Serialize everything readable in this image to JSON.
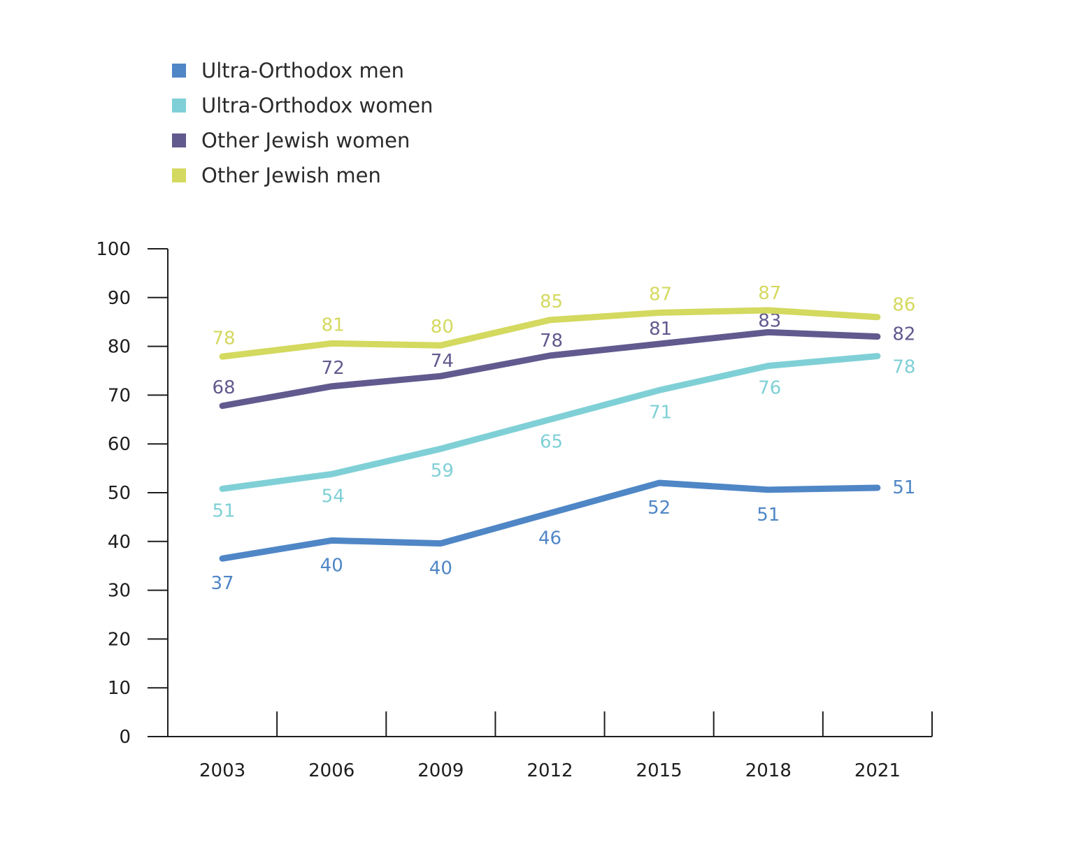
{
  "chart_data": {
    "type": "line",
    "title": "",
    "xlabel": "",
    "ylabel": "",
    "ylim": [
      0,
      100
    ],
    "yticks": [
      0,
      10,
      20,
      30,
      40,
      50,
      60,
      70,
      80,
      90,
      100
    ],
    "categories": [
      "2003",
      "2006",
      "2009",
      "2012",
      "2015",
      "2018",
      "2021"
    ],
    "legend_position": "top-left",
    "grid": false,
    "series": [
      {
        "name": "Ultra-Orthodox men",
        "color": "#4f86c6",
        "values": [
          36.5,
          40.2,
          39.6,
          45.8,
          52.0,
          50.6,
          51.0
        ],
        "labels": [
          "37",
          "40",
          "40",
          "46",
          "52",
          "51",
          "51"
        ]
      },
      {
        "name": "Ultra-Orthodox women",
        "color": "#7fd0d6",
        "values": [
          50.8,
          53.8,
          59.0,
          65.0,
          71.0,
          76.0,
          78.0
        ],
        "labels": [
          "51",
          "54",
          "59",
          "65",
          "71",
          "76",
          "78"
        ]
      },
      {
        "name": "Other Jewish women",
        "color": "#615a8e",
        "values": [
          67.8,
          71.8,
          73.9,
          78.1,
          80.5,
          82.9,
          82.0
        ],
        "labels": [
          "68",
          "72",
          "74",
          "78",
          "81",
          "83",
          "82"
        ]
      },
      {
        "name": "Other Jewish men",
        "color": "#d4d95f",
        "values": [
          77.9,
          80.6,
          80.2,
          85.4,
          86.9,
          87.4,
          86.0
        ],
        "labels": [
          "78",
          "81",
          "80",
          "85",
          "87",
          "87",
          "86"
        ]
      }
    ]
  }
}
